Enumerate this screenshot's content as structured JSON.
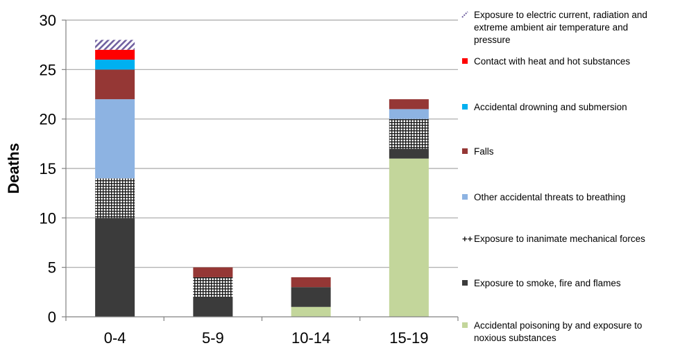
{
  "chart_data": {
    "type": "bar",
    "stacked": true,
    "categories": [
      "0-4",
      "5-9",
      "10-14",
      "15-19"
    ],
    "ylabel": "Deaths",
    "xlabel": "",
    "ylim": [
      0,
      30
    ],
    "yticks": [
      0,
      5,
      10,
      15,
      20,
      25,
      30
    ],
    "grid": true,
    "legend_position": "right",
    "series": [
      {
        "name": "Accidental poisoning by and exposure to noxious substances",
        "legend_lines": [
          "Accidental poisoning by and exposure to",
          "noxious substances"
        ],
        "color": "#c3d69b",
        "pattern": "solid",
        "values": [
          0,
          0,
          1,
          16
        ]
      },
      {
        "name": "Exposure to smoke, fire and flames",
        "legend_lines": [
          "Exposure to smoke, fire and flames"
        ],
        "color": "#3b3b3b",
        "pattern": "solid",
        "values": [
          10,
          2,
          2,
          1
        ]
      },
      {
        "name": "Exposure to inanimate mechanical forces",
        "legend_lines": [
          "Exposure to inanimate mechanical forces"
        ],
        "color": "#1a1a1a",
        "pattern": "grid",
        "values": [
          4,
          2,
          0,
          3
        ]
      },
      {
        "name": "Other accidental threats to breathing",
        "legend_lines": [
          "Other accidental threats to breathing"
        ],
        "color": "#8db3e2",
        "pattern": "solid",
        "values": [
          8,
          0,
          0,
          1
        ]
      },
      {
        "name": "Falls",
        "legend_lines": [
          "Falls"
        ],
        "color": "#953735",
        "pattern": "solid",
        "values": [
          3,
          1,
          1,
          1
        ]
      },
      {
        "name": "Accidental drowning and submersion",
        "legend_lines": [
          "Accidental drowning and submersion"
        ],
        "color": "#00b0f0",
        "pattern": "solid",
        "values": [
          1,
          0,
          0,
          0
        ]
      },
      {
        "name": "Contact with heat and hot substances",
        "legend_lines": [
          "Contact with heat and hot substances"
        ],
        "color": "#ff0000",
        "pattern": "solid",
        "values": [
          1,
          0,
          0,
          0
        ]
      },
      {
        "name": "Exposure to electric current, radiation and extreme ambient air temperature and pressure",
        "legend_lines": [
          "Exposure to electric current, radiation and",
          "extreme ambient air temperature and",
          "pressure"
        ],
        "color": "#7060a0",
        "pattern": "diagonal",
        "values": [
          1,
          0,
          0,
          0
        ]
      }
    ]
  }
}
